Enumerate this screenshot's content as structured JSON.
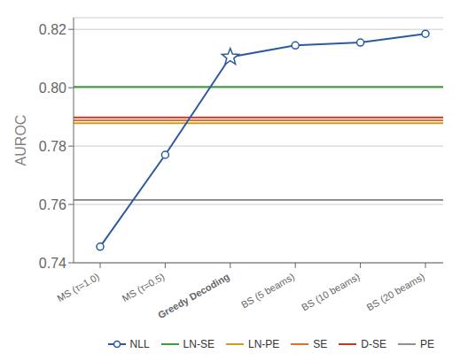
{
  "chart_data": {
    "type": "line",
    "categories": [
      "MS (τ=1.0)",
      "MS (τ=0.5)",
      "Greedy Decoding",
      "BS (5 beams)",
      "BS (10 beams)",
      "BS (20 beams)"
    ],
    "series": [
      {
        "name": "NLL",
        "color": "#2c5aa0",
        "marker": "o",
        "values": [
          0.7455,
          0.777,
          0.8105,
          0.8145,
          0.8155,
          0.8185
        ]
      }
    ],
    "highlight": {
      "category": "Greedy Decoding",
      "marker": "star"
    },
    "reference_lines": [
      {
        "name": "LN-SE",
        "value": 0.8003,
        "color": "#3a9e3a"
      },
      {
        "name": "LN-PE",
        "value": 0.7878,
        "color": "#c8a020"
      },
      {
        "name": "SE",
        "value": 0.7888,
        "color": "#e07030"
      },
      {
        "name": "D-SE",
        "value": 0.7898,
        "color": "#c0392b"
      },
      {
        "name": "PE",
        "value": 0.7615,
        "color": "#909090"
      }
    ],
    "ylabel": "AUROC",
    "ylim": [
      0.74,
      0.824
    ],
    "yticks": [
      0.74,
      0.76,
      0.78,
      {
        "value": 0.8,
        "label": "0.80"
      },
      0.82
    ],
    "grid": true,
    "legend": "lower right"
  }
}
